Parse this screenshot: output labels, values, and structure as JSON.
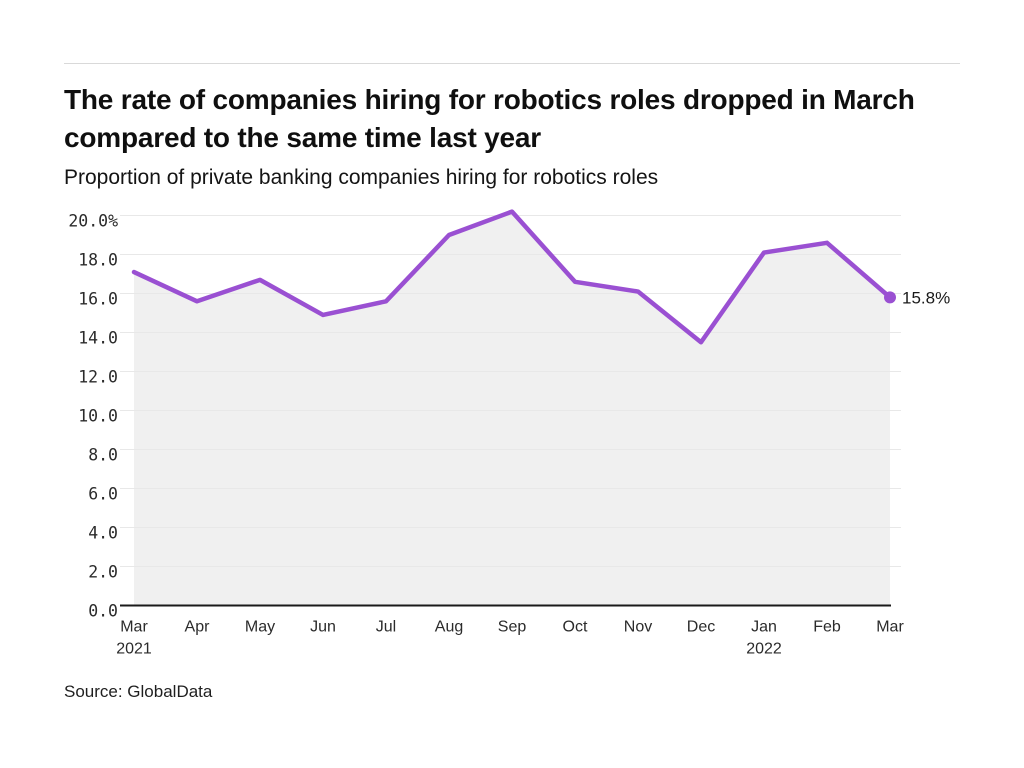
{
  "page": {
    "title": "The rate of companies hiring for robotics roles dropped in March compared to the same time last year",
    "subtitle": "Proportion of private banking companies hiring for robotics roles",
    "source": "Source: GlobalData"
  },
  "chart_data": {
    "type": "line",
    "title": "Proportion of private banking companies hiring for robotics roles",
    "categories": [
      "Mar",
      "Apr",
      "May",
      "Jun",
      "Jul",
      "Aug",
      "Sep",
      "Oct",
      "Nov",
      "Dec",
      "Jan",
      "Feb",
      "Mar"
    ],
    "x_year_labels": {
      "0": "2021",
      "10": "2022"
    },
    "series": [
      {
        "name": "Proportion of companies hiring for robotics roles",
        "values": [
          17.1,
          15.6,
          16.7,
          14.9,
          15.6,
          19.0,
          20.2,
          16.6,
          16.1,
          13.5,
          18.1,
          18.6,
          15.8
        ]
      }
    ],
    "end_label": "15.8%",
    "ylim": [
      0,
      20
    ],
    "y_tick_step": 2,
    "y_tick_labels": [
      "0.0",
      "2.0",
      "4.0",
      "6.0",
      "8.0",
      "10.0",
      "12.0",
      "14.0",
      "16.0",
      "18.0",
      "20.0%"
    ],
    "grid": "horizontal",
    "legend": "none",
    "colors": {
      "line": "#9a50d2",
      "marker": "#9a50d2",
      "area_fill": "rgba(0,0,0,0.06)",
      "gridline": "#e8e8e8",
      "axis": "#1a1a1a"
    }
  }
}
